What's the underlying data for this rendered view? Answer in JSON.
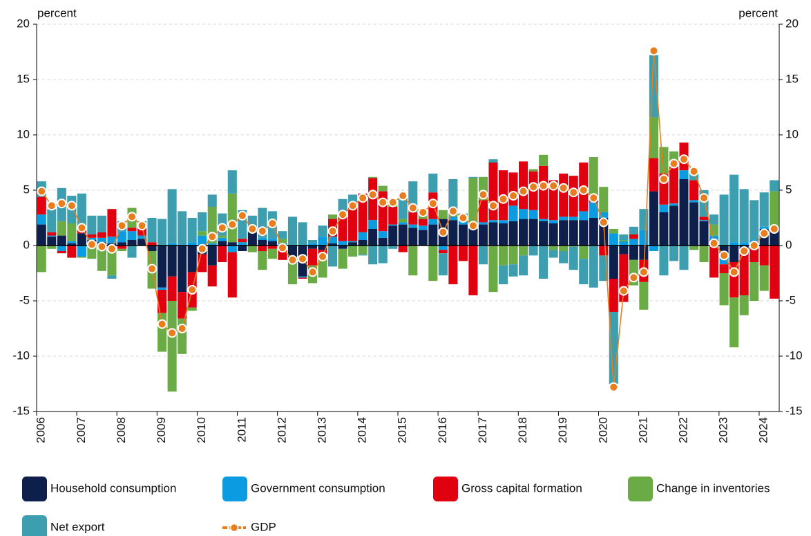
{
  "chart_data": {
    "type": "bar",
    "stacked": true,
    "ylabel": "percent",
    "y2label": "percent",
    "categories": [
      "2006",
      null,
      null,
      null,
      "2007",
      null,
      null,
      null,
      "2008",
      null,
      null,
      null,
      "2009",
      null,
      null,
      null,
      "2010",
      null,
      null,
      null,
      "2011",
      null,
      null,
      null,
      "2012",
      null,
      null,
      null,
      "2013",
      null,
      null,
      null,
      "2014",
      null,
      null,
      null,
      "2015",
      null,
      null,
      null,
      "2016",
      null,
      null,
      null,
      "2017",
      null,
      null,
      null,
      "2018",
      null,
      null,
      null,
      "2019",
      null,
      null,
      null,
      "2020",
      null,
      null,
      null,
      "2021",
      null,
      null,
      null,
      "2022",
      null,
      null,
      null,
      "2023",
      null,
      null,
      null,
      "2024",
      null
    ],
    "ylim": [
      -15,
      20
    ],
    "yticks": [
      -15,
      -10,
      -5,
      0,
      5,
      10,
      15,
      20
    ],
    "y2lim": [
      -15,
      20
    ],
    "y2ticks": [
      -15,
      -10,
      -5,
      0,
      5,
      10,
      15,
      20
    ],
    "grid": true,
    "series": [
      {
        "name": "Household consumption",
        "type": "bar",
        "color": "#0d1f4a",
        "values": [
          1.9,
          0.8,
          0.9,
          0.2,
          1.1,
          0.5,
          0.3,
          0.2,
          0.3,
          0.5,
          0.6,
          -0.5,
          -3.8,
          -2.8,
          -4.2,
          -2.4,
          -0.8,
          -1.8,
          0.4,
          0.3,
          -0.5,
          1.2,
          0.5,
          0.4,
          -0.3,
          -1.0,
          -2.8,
          -0.3,
          -0.4,
          0.2,
          -0.3,
          0.3,
          0.5,
          1.5,
          0.7,
          1.8,
          1.9,
          1.6,
          1.4,
          1.9,
          2.4,
          2.3,
          1.9,
          1.5,
          1.9,
          2.1,
          2.0,
          2.2,
          2.4,
          2.4,
          2.2,
          2.0,
          2.3,
          2.3,
          2.3,
          2.5,
          2.5,
          -3.0,
          -0.8,
          -1.3,
          -1.3,
          4.9,
          3.0,
          3.6,
          6.0,
          3.9,
          2.2,
          0.5,
          -1.0,
          -1.5,
          -0.7,
          0.2,
          1.5,
          1.3
        ]
      },
      {
        "name": "Government consumption",
        "type": "bar",
        "color": "#0a9be0",
        "values": [
          0.9,
          0.1,
          -0.5,
          0.2,
          -1.0,
          0.2,
          0.4,
          0.6,
          1.0,
          0.8,
          0.3,
          0.0,
          -0.2,
          0.2,
          0.1,
          0.3,
          0.9,
          0.2,
          0.3,
          -0.6,
          0.3,
          0.1,
          0.2,
          0.2,
          0.2,
          0.0,
          -0.1,
          0.2,
          0.8,
          0.6,
          0.4,
          0.1,
          0.7,
          0.8,
          0.6,
          0.1,
          0.2,
          0.3,
          0.4,
          0.5,
          -0.4,
          0.3,
          0.4,
          0.3,
          0.2,
          0.2,
          0.3,
          1.4,
          0.9,
          0.8,
          0.2,
          0.3,
          0.3,
          0.3,
          0.8,
          1.4,
          0.5,
          1.1,
          0.4,
          0.6,
          1.4,
          -0.5,
          0.7,
          0.2,
          0.8,
          0.2,
          0.1,
          0.4,
          -0.7,
          0.3,
          0.3,
          0.3,
          0.2,
          0.1
        ]
      },
      {
        "name": "Gross capital formation",
        "type": "bar",
        "color": "#e00010",
        "values": [
          1.6,
          0.3,
          -0.2,
          -1.1,
          0.4,
          0.3,
          0.5,
          2.5,
          -0.3,
          0.3,
          0.8,
          0.3,
          -2.1,
          -2.2,
          -2.4,
          -3.2,
          -1.6,
          -1.9,
          -1.5,
          -4.1,
          0.3,
          0.2,
          -0.5,
          -0.3,
          -1.0,
          -0.3,
          -0.1,
          -1.5,
          -0.8,
          1.6,
          2.2,
          3.5,
          3.5,
          3.8,
          3.6,
          1.6,
          -0.6,
          1.1,
          0.6,
          2.4,
          -0.3,
          -3.5,
          -1.4,
          -4.5,
          2.0,
          5.2,
          4.5,
          3.0,
          4.3,
          3.5,
          4.8,
          3.6,
          3.9,
          3.7,
          4.4,
          0.6,
          -0.9,
          -3.0,
          -4.3,
          0.4,
          -2.0,
          3.0,
          2.8,
          3.3,
          2.5,
          1.8,
          0.3,
          -2.9,
          -0.8,
          -3.2,
          -3.8,
          -1.5,
          -1.8,
          -4.8
        ]
      },
      {
        "name": "Change in inventories",
        "type": "bar",
        "color": "#6aab46",
        "values": [
          -2.4,
          -0.3,
          1.3,
          1.6,
          -0.1,
          -1.2,
          -2.3,
          -2.7,
          -0.2,
          1.8,
          0.0,
          -3.4,
          -3.5,
          -8.2,
          -3.2,
          -0.3,
          0.4,
          3.3,
          0.2,
          4.4,
          0.0,
          -0.6,
          -1.7,
          -0.9,
          0.4,
          -2.2,
          0.0,
          -1.6,
          -1.7,
          0.4,
          -1.8,
          -1.0,
          -0.8,
          0.1,
          0.5,
          0.4,
          0.3,
          -2.7,
          0.3,
          -3.2,
          0.8,
          0.2,
          0.3,
          4.3,
          2.1,
          -4.2,
          -1.8,
          -1.7,
          -0.9,
          0.2,
          1.0,
          -0.4,
          -0.5,
          -0.1,
          -1.2,
          3.5,
          2.3,
          0.4,
          0.1,
          -2.3,
          -2.5,
          3.7,
          2.4,
          1.4,
          0.0,
          -0.4,
          -1.5,
          1.0,
          -2.9,
          -4.5,
          -1.8,
          -3.5,
          -2.3,
          3.5
        ]
      },
      {
        "name": "Net export",
        "type": "bar",
        "color": "#3d9eb0",
        "values": [
          1.4,
          2.1,
          3.0,
          2.5,
          3.2,
          1.7,
          1.5,
          -0.3,
          0.9,
          -1.1,
          0.5,
          2.2,
          2.4,
          4.9,
          3.0,
          2.2,
          1.7,
          1.1,
          2.0,
          2.1,
          2.6,
          1.2,
          2.7,
          2.5,
          0.7,
          2.6,
          2.1,
          0.3,
          1.0,
          -1.9,
          1.6,
          0.7,
          -0.1,
          -1.7,
          -1.6,
          -0.3,
          1.9,
          2.8,
          0.3,
          1.7,
          -2.0,
          3.2,
          0.3,
          0.1,
          -1.7,
          0.3,
          -1.7,
          -1.1,
          -1.8,
          -0.9,
          -3.0,
          -0.7,
          -1.1,
          -2.1,
          -2.3,
          -3.8,
          -2.3,
          -6.5,
          0.5,
          0.7,
          1.9,
          5.6,
          -2.7,
          -1.4,
          -2.2,
          0.6,
          2.4,
          0.9,
          4.6,
          6.1,
          4.8,
          3.6,
          3.1,
          1.0
        ]
      },
      {
        "name": "GDP",
        "type": "line",
        "color": "#e87d1e",
        "values": [
          4.9,
          3.6,
          3.8,
          3.6,
          1.6,
          0.1,
          -0.1,
          -0.3,
          1.8,
          2.6,
          1.8,
          -2.1,
          -7.1,
          -7.9,
          -7.5,
          -4.0,
          -0.3,
          0.8,
          1.6,
          1.9,
          2.7,
          1.5,
          1.3,
          2.0,
          -0.2,
          -1.3,
          -1.2,
          -2.4,
          -1.0,
          1.3,
          2.8,
          3.6,
          4.3,
          4.6,
          3.9,
          3.9,
          4.5,
          3.4,
          3.0,
          3.8,
          1.2,
          3.1,
          2.5,
          1.8,
          4.6,
          3.6,
          4.2,
          4.5,
          4.9,
          5.3,
          5.4,
          5.4,
          5.2,
          4.8,
          5.0,
          4.3,
          2.1,
          -12.8,
          -4.1,
          -2.9,
          -2.4,
          17.6,
          6.0,
          7.4,
          7.8,
          6.7,
          4.3,
          0.2,
          -0.9,
          -2.4,
          -0.5,
          0.0,
          1.1,
          1.5
        ]
      }
    ]
  }
}
